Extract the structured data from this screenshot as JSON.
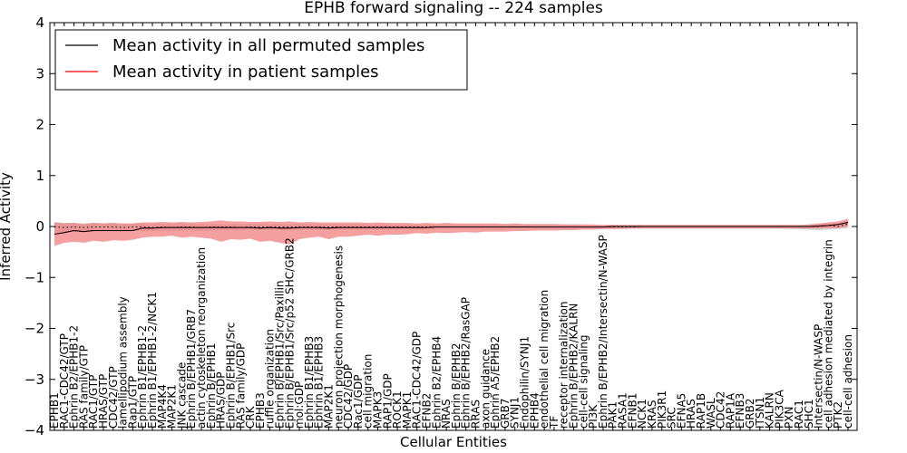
{
  "chart_data": {
    "type": "line",
    "title": "EPHB forward signaling -- 224 samples",
    "xlabel": "Cellular Entities",
    "ylabel": "Inferred Activity",
    "ylim": [
      -4,
      4
    ],
    "yticks": [
      -4,
      -3,
      -2,
      -1,
      0,
      1,
      2,
      3,
      4
    ],
    "ytick_labels": [
      "−4",
      "−3",
      "−2",
      "−1",
      "0",
      "1",
      "2",
      "3",
      "4"
    ],
    "grid": false,
    "legend_position": "top-left",
    "colors": {
      "permuted": "#000000",
      "patient": "#ff0000",
      "permuted_band": "#b0b0b0",
      "patient_band": "#f08080"
    },
    "categories": [
      "EPHB1",
      "RAC1-CDC42/GTP",
      "Ephrin B2/EPHB1-2",
      "RAS family/GTP",
      "RAC1/GTP",
      "HRAS/GTP",
      "CDC42/GTP",
      "lamellipodium assembly",
      "Rap1/GTP",
      "Ephrin B1/EPHB1-2",
      "Ephrin B1/EPHB1-2/NCK1",
      "MAP4K4",
      "MAP2K1",
      "JNK cascade",
      "Ephrin B/EPHB1/GRB7",
      "actin cytoskeleton reorganization",
      "Ephrin B/EPHB1",
      "HRAS/GDP",
      "Ephrin B/EPHB1/Src",
      "RAS family/GDP",
      "CRK",
      "EPHB3",
      "ruffle organization",
      "Ephrin B/EPHB1/Src/Paxillin",
      "Ephrin B/EPHB1/Src/p52 SHC/GRB2",
      "mol:GDP",
      "Ephrin B1/EPHB3",
      "Ephrin B1/EPHB3",
      "MAP2K1",
      "neuron projection morphogenesis",
      "CDC42/GDP",
      "Rac1/GDP",
      "cell migration",
      "MAPK3",
      "RAP1/GDP",
      "ROCK1",
      "MAPK1",
      "RAC1-CDC42/GDP",
      "EFNB2",
      "Ephrin B2/EPHB4",
      "NRAS",
      "Ephrin B/EPHB2",
      "Ephrin B/EPHB2/RasGAP",
      "RRAS",
      "axon guidance",
      "Ephrin A5/EPHB2",
      "GRB7",
      "SYNJ1",
      "Endophilin/SYNJ1",
      "EPHB4",
      "endothelial cell migration",
      "TF",
      "receptor internalization",
      "Ephrin B/EPHB2/KALRN",
      "cell-cell signaling",
      "PI3K",
      "Ephrin B/EPHB2/Intersectin/N-WASP",
      "PAK1",
      "RASA1",
      "EFNB1",
      "NCK1",
      "KRAS",
      "PIK3R1",
      "SRC",
      "EFNA5",
      "HRAS",
      "RAP1B",
      "WASL",
      "CDC42",
      "RAP1A",
      "EFNB3",
      "GRB2",
      "ITSN1",
      "KALRN",
      "PIK3CA",
      "PXN",
      "RAC1",
      "SHC1",
      "Intersectin/N-WASP",
      "cell adhesion mediated by integrin",
      "PTK2",
      "cell-cell adhesion"
    ],
    "series": [
      {
        "name": "Mean activity in all permuted samples",
        "color": "#000000",
        "values": [
          -0.01,
          -0.02,
          -0.01,
          -0.02,
          -0.01,
          -0.01,
          -0.01,
          -0.02,
          -0.01,
          -0.01,
          -0.02,
          -0.01,
          -0.02,
          -0.01,
          -0.01,
          -0.02,
          -0.01,
          -0.01,
          -0.01,
          -0.02,
          -0.01,
          -0.01,
          -0.01,
          -0.01,
          -0.01,
          -0.01,
          -0.01,
          -0.01,
          -0.01,
          -0.01,
          -0.01,
          -0.01,
          -0.01,
          -0.01,
          -0.01,
          -0.01,
          -0.01,
          -0.01,
          -0.01,
          -0.01,
          -0.01,
          -0.01,
          -0.01,
          -0.01,
          -0.01,
          -0.01,
          -0.01,
          -0.01,
          -0.01,
          -0.01,
          -0.01,
          -0.01,
          -0.01,
          -0.01,
          -0.01,
          -0.01,
          -0.01,
          -0.01,
          -0.01,
          -0.01,
          0.0,
          0.0,
          0.0,
          0.0,
          0.0,
          0.0,
          0.0,
          0.0,
          0.0,
          0.0,
          0.0,
          0.0,
          0.0,
          0.0,
          0.0,
          0.0,
          0.0,
          0.0,
          0.0,
          0.02,
          0.0,
          0.05
        ],
        "upper": [
          0.09,
          0.07,
          0.07,
          0.06,
          0.07,
          0.06,
          0.07,
          0.05,
          0.06,
          0.06,
          0.05,
          0.06,
          0.05,
          0.06,
          0.05,
          0.05,
          0.05,
          0.05,
          0.05,
          0.05,
          0.05,
          0.05,
          0.05,
          0.05,
          0.05,
          0.05,
          0.05,
          0.05,
          0.05,
          0.05,
          0.04,
          0.05,
          0.04,
          0.04,
          0.04,
          0.04,
          0.04,
          0.04,
          0.04,
          0.04,
          0.04,
          0.04,
          0.04,
          0.04,
          0.04,
          0.04,
          0.04,
          0.04,
          0.04,
          0.04,
          0.04,
          0.04,
          0.04,
          0.04,
          0.04,
          0.03,
          0.03,
          0.03,
          0.03,
          0.03,
          0.03,
          0.03,
          0.03,
          0.03,
          0.03,
          0.03,
          0.03,
          0.03,
          0.03,
          0.03,
          0.03,
          0.03,
          0.03,
          0.03,
          0.03,
          0.03,
          0.03,
          0.04,
          0.05,
          0.06,
          0.06,
          0.12
        ],
        "lower": [
          -0.12,
          -0.11,
          -0.1,
          -0.11,
          -0.1,
          -0.09,
          -0.1,
          -0.1,
          -0.09,
          -0.09,
          -0.09,
          -0.08,
          -0.09,
          -0.08,
          -0.08,
          -0.08,
          -0.08,
          -0.08,
          -0.07,
          -0.08,
          -0.07,
          -0.07,
          -0.07,
          -0.07,
          -0.07,
          -0.07,
          -0.06,
          -0.07,
          -0.06,
          -0.06,
          -0.06,
          -0.06,
          -0.06,
          -0.06,
          -0.06,
          -0.06,
          -0.05,
          -0.06,
          -0.05,
          -0.05,
          -0.05,
          -0.05,
          -0.05,
          -0.05,
          -0.05,
          -0.05,
          -0.05,
          -0.05,
          -0.05,
          -0.05,
          -0.05,
          -0.05,
          -0.05,
          -0.05,
          -0.05,
          -0.04,
          -0.04,
          -0.04,
          -0.04,
          -0.04,
          -0.04,
          -0.04,
          -0.04,
          -0.04,
          -0.04,
          -0.04,
          -0.04,
          -0.04,
          -0.04,
          -0.04,
          -0.04,
          -0.04,
          -0.04,
          -0.04,
          -0.04,
          -0.05,
          -0.05,
          -0.06,
          -0.07,
          -0.06,
          -0.05,
          -0.03
        ]
      },
      {
        "name": "Mean activity in patient samples",
        "color": "#ff0000",
        "values": [
          -0.15,
          -0.12,
          -0.08,
          -0.1,
          -0.08,
          -0.08,
          -0.08,
          -0.08,
          -0.08,
          -0.03,
          -0.03,
          -0.02,
          -0.02,
          -0.02,
          -0.02,
          -0.02,
          -0.02,
          -0.02,
          -0.02,
          -0.02,
          -0.02,
          -0.03,
          -0.02,
          -0.03,
          -0.03,
          -0.02,
          -0.02,
          -0.02,
          -0.03,
          -0.02,
          -0.02,
          -0.02,
          -0.02,
          -0.02,
          -0.02,
          -0.02,
          -0.02,
          -0.02,
          -0.02,
          -0.01,
          -0.01,
          -0.01,
          -0.01,
          -0.01,
          -0.01,
          -0.01,
          -0.01,
          -0.01,
          -0.01,
          -0.01,
          -0.01,
          -0.01,
          -0.01,
          -0.01,
          -0.01,
          -0.01,
          -0.01,
          0.0,
          0.0,
          0.0,
          0.0,
          0.0,
          0.0,
          0.0,
          0.0,
          0.0,
          0.0,
          0.0,
          0.0,
          0.0,
          0.0,
          0.0,
          0.0,
          0.0,
          0.0,
          0.0,
          0.0,
          0.0,
          0.01,
          0.02,
          0.04,
          0.08
        ],
        "upper": [
          0.08,
          0.06,
          0.07,
          0.05,
          0.07,
          0.06,
          0.07,
          0.06,
          0.06,
          0.08,
          0.08,
          0.09,
          0.08,
          0.09,
          0.08,
          0.09,
          0.1,
          0.12,
          0.1,
          0.1,
          0.09,
          0.09,
          0.1,
          0.09,
          0.1,
          0.08,
          0.09,
          0.08,
          0.08,
          0.08,
          0.08,
          0.08,
          0.07,
          0.08,
          0.07,
          0.07,
          0.07,
          0.06,
          0.07,
          0.06,
          0.07,
          0.06,
          0.06,
          0.06,
          0.06,
          0.06,
          0.05,
          0.06,
          0.05,
          0.05,
          0.05,
          0.05,
          0.04,
          0.04,
          0.04,
          0.04,
          0.03,
          0.03,
          0.03,
          0.03,
          0.03,
          0.03,
          0.03,
          0.03,
          0.03,
          0.03,
          0.03,
          0.03,
          0.03,
          0.03,
          0.03,
          0.03,
          0.03,
          0.03,
          0.03,
          0.03,
          0.03,
          0.04,
          0.06,
          0.08,
          0.1,
          0.15
        ],
        "lower": [
          -0.38,
          -0.32,
          -0.3,
          -0.32,
          -0.28,
          -0.3,
          -0.27,
          -0.28,
          -0.26,
          -0.22,
          -0.2,
          -0.2,
          -0.18,
          -0.22,
          -0.2,
          -0.22,
          -0.24,
          -0.3,
          -0.25,
          -0.26,
          -0.24,
          -0.3,
          -0.28,
          -0.32,
          -0.35,
          -0.25,
          -0.22,
          -0.2,
          -0.25,
          -0.2,
          -0.2,
          -0.18,
          -0.16,
          -0.18,
          -0.16,
          -0.16,
          -0.15,
          -0.13,
          -0.14,
          -0.12,
          -0.13,
          -0.12,
          -0.11,
          -0.12,
          -0.1,
          -0.1,
          -0.1,
          -0.09,
          -0.09,
          -0.08,
          -0.08,
          -0.08,
          -0.07,
          -0.07,
          -0.06,
          -0.06,
          -0.05,
          -0.05,
          -0.05,
          -0.04,
          -0.04,
          -0.04,
          -0.04,
          -0.04,
          -0.04,
          -0.04,
          -0.04,
          -0.04,
          -0.04,
          -0.04,
          -0.04,
          -0.04,
          -0.04,
          -0.04,
          -0.04,
          -0.04,
          -0.04,
          -0.04,
          -0.04,
          -0.03,
          -0.03,
          0.0
        ]
      }
    ]
  }
}
